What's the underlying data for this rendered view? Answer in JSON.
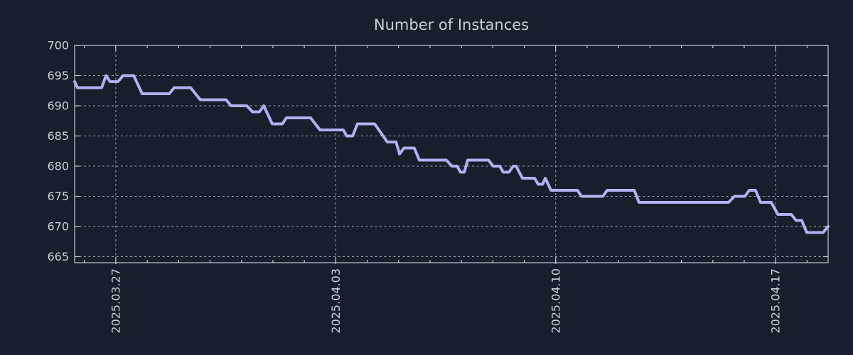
{
  "chart": {
    "title": "Number of Instances"
  },
  "colors": {
    "background": "#161f2b",
    "line": "#aeb2f0",
    "axis": "#c3c9cf",
    "grid": "#9aa2ab",
    "tick_text": "#ccd1d6",
    "title_text": "#c9ced4"
  },
  "chart_data": {
    "type": "line",
    "title": "Number of Instances",
    "legend": "none",
    "grid": "dotted at major ticks",
    "x_unit": "days from left edge of plot (left edge = 2025.03.25 approx)",
    "xlim": [
      0,
      23.98
    ],
    "ylim": [
      664,
      700
    ],
    "y_ticks": [
      665,
      670,
      675,
      680,
      685,
      690,
      695,
      700
    ],
    "x_ticks_major": {
      "positions": [
        1.31,
        8.31,
        15.31,
        22.31
      ],
      "labels": [
        "2025.03.27",
        "2025.04.03",
        "2025.04.10",
        "2025.04.17"
      ]
    },
    "x_ticks_minor": [
      0.31,
      1.31,
      2.31,
      3.31,
      4.31,
      5.31,
      6.31,
      7.31,
      8.31,
      9.31,
      10.31,
      11.31,
      12.31,
      13.31,
      14.31,
      15.31,
      16.31,
      17.31,
      18.31,
      19.31,
      20.31,
      21.31,
      22.31,
      23.31
    ],
    "series": [
      {
        "name": "instances",
        "points": [
          [
            0.0,
            694
          ],
          [
            0.09,
            693
          ],
          [
            0.86,
            693
          ],
          [
            1.0,
            695
          ],
          [
            1.13,
            694
          ],
          [
            1.38,
            694
          ],
          [
            1.54,
            695
          ],
          [
            1.88,
            695
          ],
          [
            2.15,
            692
          ],
          [
            3.01,
            692
          ],
          [
            3.17,
            693
          ],
          [
            3.69,
            693
          ],
          [
            4.0,
            691
          ],
          [
            4.82,
            691
          ],
          [
            4.98,
            690
          ],
          [
            5.48,
            690
          ],
          [
            5.66,
            689
          ],
          [
            5.88,
            689
          ],
          [
            6.02,
            690
          ],
          [
            6.29,
            687
          ],
          [
            6.61,
            687
          ],
          [
            6.74,
            688
          ],
          [
            7.51,
            688
          ],
          [
            7.81,
            686
          ],
          [
            8.55,
            686
          ],
          [
            8.66,
            685
          ],
          [
            8.85,
            685
          ],
          [
            9.0,
            687
          ],
          [
            9.55,
            687
          ],
          [
            9.95,
            684
          ],
          [
            10.23,
            684
          ],
          [
            10.34,
            682
          ],
          [
            10.48,
            683
          ],
          [
            10.81,
            683
          ],
          [
            10.97,
            681
          ],
          [
            11.83,
            681
          ],
          [
            12.01,
            680
          ],
          [
            12.17,
            680
          ],
          [
            12.28,
            679
          ],
          [
            12.4,
            679
          ],
          [
            12.51,
            681
          ],
          [
            13.17,
            681
          ],
          [
            13.32,
            680
          ],
          [
            13.53,
            680
          ],
          [
            13.64,
            679
          ],
          [
            13.82,
            679
          ],
          [
            13.96,
            680
          ],
          [
            14.05,
            680
          ],
          [
            14.25,
            678
          ],
          [
            14.64,
            678
          ],
          [
            14.75,
            677
          ],
          [
            14.89,
            677
          ],
          [
            14.98,
            678
          ],
          [
            15.16,
            676
          ],
          [
            16.0,
            676
          ],
          [
            16.13,
            675
          ],
          [
            16.81,
            675
          ],
          [
            16.95,
            676
          ],
          [
            17.81,
            676
          ],
          [
            17.96,
            674
          ],
          [
            20.81,
            674
          ],
          [
            21.0,
            675
          ],
          [
            21.33,
            675
          ],
          [
            21.47,
            676
          ],
          [
            21.67,
            676
          ],
          [
            21.83,
            674
          ],
          [
            22.17,
            674
          ],
          [
            22.38,
            672
          ],
          [
            22.81,
            672
          ],
          [
            22.96,
            671
          ],
          [
            23.14,
            671
          ],
          [
            23.3,
            669
          ],
          [
            23.82,
            669
          ],
          [
            23.98,
            670
          ]
        ]
      }
    ]
  }
}
